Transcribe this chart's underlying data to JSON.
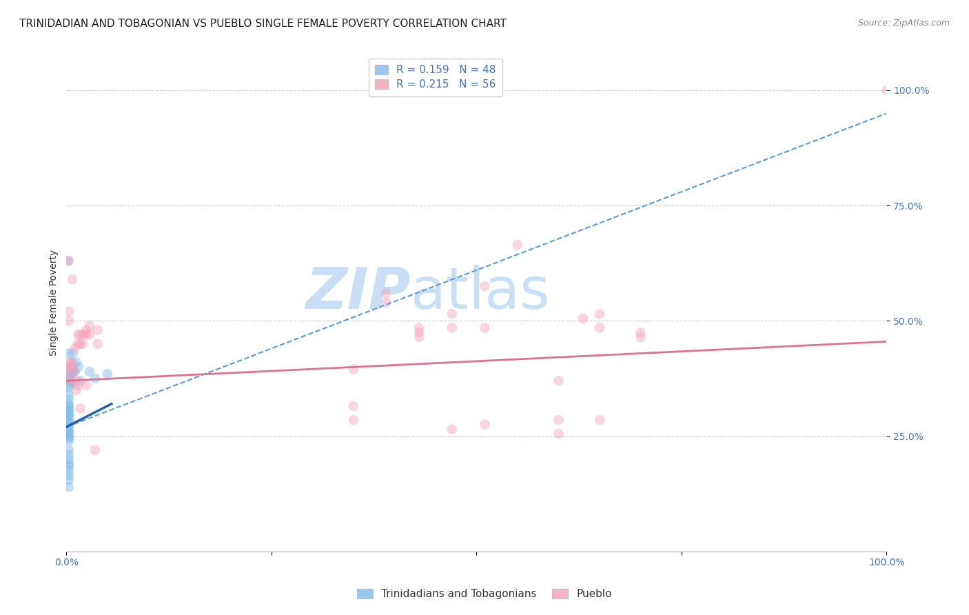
{
  "title": "TRINIDADIAN AND TOBAGONIAN VS PUEBLO SINGLE FEMALE POVERTY CORRELATION CHART",
  "source": "Source: ZipAtlas.com",
  "ylabel": "Single Female Poverty",
  "legend_entries": [
    {
      "label": "R = 0.159   N = 48",
      "color": "#aec6e8"
    },
    {
      "label": "R = 0.215   N = 56",
      "color": "#f4a7b9"
    }
  ],
  "legend_label_bottom": [
    "Trinidadians and Tobagonians",
    "Pueblo"
  ],
  "ytick_labels": [
    "100.0%",
    "75.0%",
    "50.0%",
    "25.0%"
  ],
  "ytick_positions": [
    1.0,
    0.75,
    0.5,
    0.25
  ],
  "blue_scatter": [
    [
      0.002,
      0.63
    ],
    [
      0.003,
      0.43
    ],
    [
      0.003,
      0.38
    ],
    [
      0.003,
      0.375
    ],
    [
      0.003,
      0.36
    ],
    [
      0.003,
      0.355
    ],
    [
      0.003,
      0.34
    ],
    [
      0.003,
      0.33
    ],
    [
      0.003,
      0.32
    ],
    [
      0.003,
      0.315
    ],
    [
      0.003,
      0.31
    ],
    [
      0.003,
      0.305
    ],
    [
      0.003,
      0.3
    ],
    [
      0.003,
      0.295
    ],
    [
      0.003,
      0.29
    ],
    [
      0.003,
      0.285
    ],
    [
      0.003,
      0.28
    ],
    [
      0.003,
      0.275
    ],
    [
      0.003,
      0.27
    ],
    [
      0.003,
      0.265
    ],
    [
      0.003,
      0.26
    ],
    [
      0.003,
      0.255
    ],
    [
      0.003,
      0.25
    ],
    [
      0.003,
      0.245
    ],
    [
      0.003,
      0.24
    ],
    [
      0.003,
      0.22
    ],
    [
      0.003,
      0.21
    ],
    [
      0.003,
      0.2
    ],
    [
      0.003,
      0.19
    ],
    [
      0.003,
      0.185
    ],
    [
      0.003,
      0.175
    ],
    [
      0.003,
      0.165
    ],
    [
      0.003,
      0.155
    ],
    [
      0.003,
      0.14
    ],
    [
      0.005,
      0.395
    ],
    [
      0.005,
      0.37
    ],
    [
      0.006,
      0.41
    ],
    [
      0.007,
      0.385
    ],
    [
      0.007,
      0.365
    ],
    [
      0.008,
      0.43
    ],
    [
      0.008,
      0.39
    ],
    [
      0.01,
      0.39
    ],
    [
      0.012,
      0.41
    ],
    [
      0.015,
      0.4
    ],
    [
      0.017,
      0.37
    ],
    [
      0.028,
      0.39
    ],
    [
      0.035,
      0.375
    ],
    [
      0.05,
      0.385
    ]
  ],
  "pink_scatter": [
    [
      0.003,
      0.63
    ],
    [
      0.003,
      0.52
    ],
    [
      0.003,
      0.5
    ],
    [
      0.003,
      0.41
    ],
    [
      0.003,
      0.4
    ],
    [
      0.003,
      0.395
    ],
    [
      0.003,
      0.38
    ],
    [
      0.003,
      0.37
    ],
    [
      0.007,
      0.59
    ],
    [
      0.007,
      0.41
    ],
    [
      0.007,
      0.4
    ],
    [
      0.01,
      0.44
    ],
    [
      0.01,
      0.39
    ],
    [
      0.012,
      0.37
    ],
    [
      0.012,
      0.35
    ],
    [
      0.014,
      0.47
    ],
    [
      0.014,
      0.45
    ],
    [
      0.014,
      0.36
    ],
    [
      0.017,
      0.47
    ],
    [
      0.017,
      0.45
    ],
    [
      0.017,
      0.31
    ],
    [
      0.02,
      0.47
    ],
    [
      0.02,
      0.45
    ],
    [
      0.024,
      0.48
    ],
    [
      0.024,
      0.47
    ],
    [
      0.024,
      0.36
    ],
    [
      0.028,
      0.49
    ],
    [
      0.028,
      0.47
    ],
    [
      0.035,
      0.22
    ],
    [
      0.038,
      0.48
    ],
    [
      0.038,
      0.45
    ],
    [
      0.35,
      0.395
    ],
    [
      0.35,
      0.315
    ],
    [
      0.35,
      0.285
    ],
    [
      0.39,
      0.56
    ],
    [
      0.39,
      0.54
    ],
    [
      0.43,
      0.485
    ],
    [
      0.43,
      0.475
    ],
    [
      0.43,
      0.465
    ],
    [
      0.47,
      0.515
    ],
    [
      0.47,
      0.485
    ],
    [
      0.47,
      0.265
    ],
    [
      0.51,
      0.575
    ],
    [
      0.51,
      0.485
    ],
    [
      0.51,
      0.275
    ],
    [
      0.55,
      0.665
    ],
    [
      0.6,
      0.37
    ],
    [
      0.6,
      0.285
    ],
    [
      0.6,
      0.255
    ],
    [
      0.63,
      0.505
    ],
    [
      0.65,
      0.515
    ],
    [
      0.65,
      0.485
    ],
    [
      0.65,
      0.285
    ],
    [
      0.7,
      0.475
    ],
    [
      0.7,
      0.465
    ],
    [
      1.0,
      1.0
    ]
  ],
  "blue_line_x0": 0.0,
  "blue_line_x1": 1.0,
  "blue_line_y0": 0.27,
  "blue_line_y1": 0.95,
  "blue_line_solid_x0": 0.0,
  "blue_line_solid_x1": 0.055,
  "blue_line_solid_y0": 0.27,
  "blue_line_solid_y1": 0.32,
  "pink_line_x0": 0.0,
  "pink_line_x1": 1.0,
  "pink_line_y0": 0.37,
  "pink_line_y1": 0.455,
  "scatter_size": 110,
  "scatter_alpha": 0.45,
  "blue_color": "#7eb8e8",
  "pink_color": "#f4a0b8",
  "blue_line_color": "#5b9bd5",
  "blue_solid_line_color": "#2060b0",
  "pink_line_color": "#e07090",
  "watermark_text": "ZIP",
  "watermark_text2": "atlas",
  "watermark_color_zip": "#c8dff5",
  "watermark_color_atlas": "#c8dff5",
  "background_color": "#ffffff",
  "grid_color": "#cccccc",
  "title_fontsize": 11,
  "axis_label_fontsize": 10,
  "tick_label_fontsize": 10,
  "tick_label_color": "#4472c4",
  "source_fontsize": 9,
  "xlim": [
    0,
    1.0
  ],
  "ylim": [
    0.0,
    1.08
  ]
}
